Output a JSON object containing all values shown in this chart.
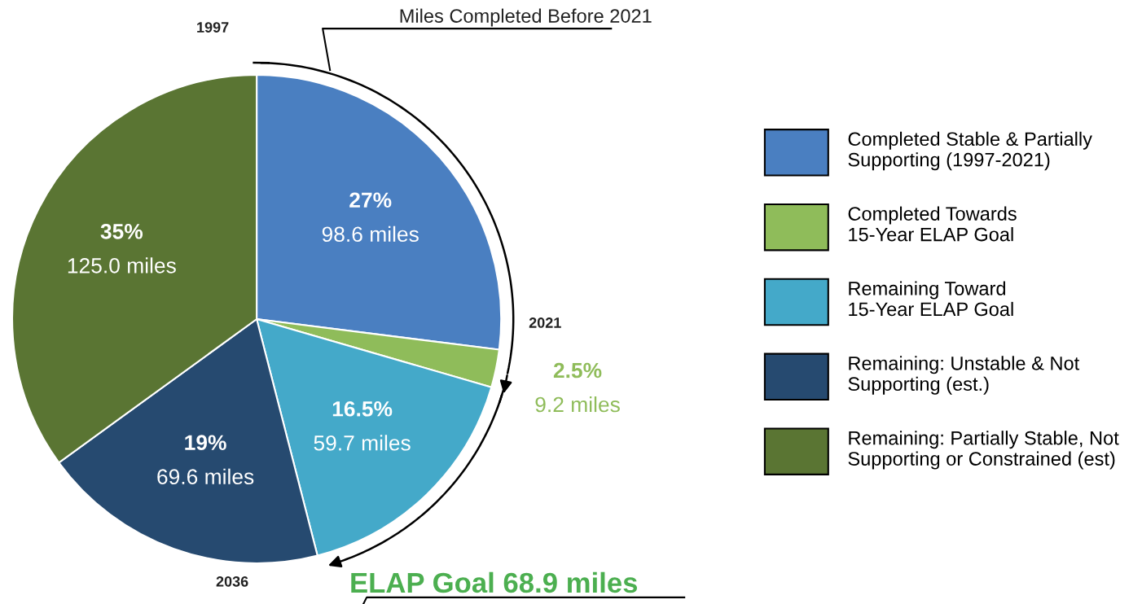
{
  "chart_data": {
    "type": "pie",
    "categories": [
      "Completed Stable & Partially\nSupporting (1997-2021)",
      "Completed Towards\n15-Year ELAP Goal",
      "Remaining Toward\n15-Year ELAP Goal",
      "Remaining: Unstable & Not\nSupporting (est.)",
      "Remaining: Partially Stable, Not\nSupporting or Constrained (est)"
    ],
    "values": [
      27,
      2.5,
      16.5,
      19,
      35
    ],
    "value_labels": [
      "27%\n98.6 miles",
      "2.5%\n9.2 miles",
      "16.5%\n59.7 miles",
      "19%\n69.6 miles",
      "35%\n125.0 miles"
    ],
    "colors": [
      "#4a7fc1",
      "#8fbc5a",
      "#44a9c9",
      "#264a70",
      "#5a7533"
    ],
    "legend": "right",
    "annotations": [
      "1997",
      "2021",
      "2036",
      "Miles Completed Before 2021",
      "ELAP Goal 68.9 miles"
    ]
  }
}
